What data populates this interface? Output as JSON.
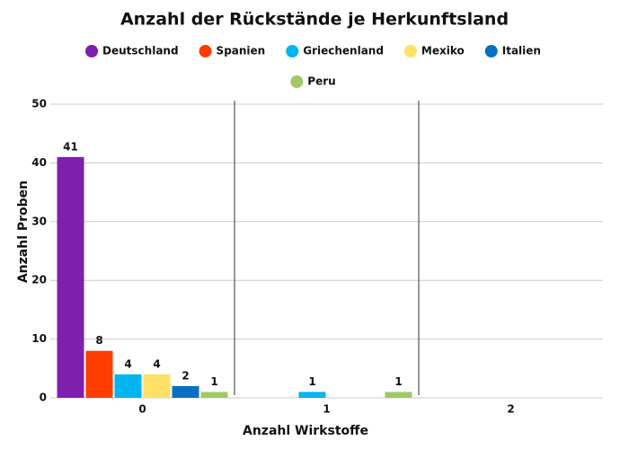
{
  "chart_data": {
    "type": "bar",
    "title": "Anzahl der Rückstände je Herkunftsland",
    "x_label": "Anzahl Wirkstoffe",
    "y_label": "Anzahl Proben",
    "categories": [
      "0",
      "1",
      "2"
    ],
    "series": [
      {
        "name": "Deutschland",
        "color": "#7e1fae",
        "values": [
          41,
          null,
          null
        ]
      },
      {
        "name": "Spanien",
        "color": "#ff3d00",
        "values": [
          8,
          null,
          null
        ]
      },
      {
        "name": "Griechenland",
        "color": "#03b4f0",
        "values": [
          4,
          1,
          null
        ]
      },
      {
        "name": "Mexiko",
        "color": "#ffe066",
        "values": [
          4,
          null,
          null
        ]
      },
      {
        "name": "Italien",
        "color": "#0a6fc2",
        "values": [
          2,
          null,
          null
        ]
      },
      {
        "name": "Peru",
        "color": "#a2c865",
        "values": [
          1,
          1,
          null
        ]
      }
    ],
    "ylim": [
      0,
      50
    ],
    "yticks": [
      0,
      10,
      20,
      30,
      40,
      50
    ],
    "grid": true
  }
}
